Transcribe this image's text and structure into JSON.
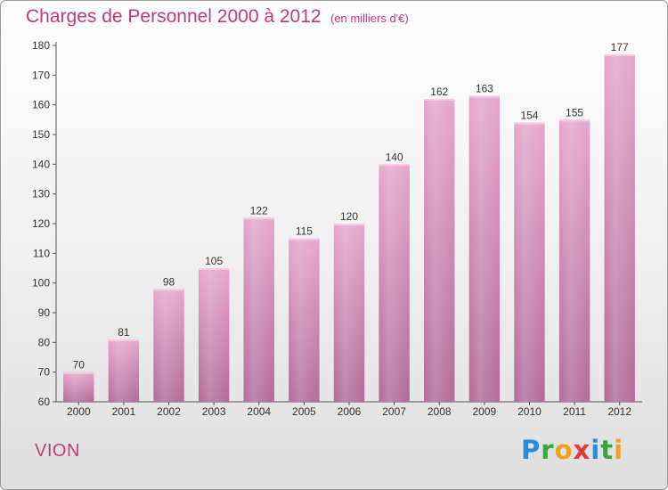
{
  "chart_data": {
    "type": "bar",
    "title": "Charges de Personnel 2000 à 2012",
    "subtitle": "(en milliers d'€)",
    "categories": [
      "2000",
      "2001",
      "2002",
      "2003",
      "2004",
      "2005",
      "2006",
      "2007",
      "2008",
      "2009",
      "2010",
      "2011",
      "2012"
    ],
    "values": [
      70,
      81,
      98,
      105,
      122,
      115,
      120,
      140,
      162,
      163,
      154,
      155,
      177
    ],
    "ylim": [
      60,
      180
    ],
    "yticks": [
      60,
      70,
      80,
      90,
      100,
      110,
      120,
      130,
      140,
      150,
      160,
      170,
      180
    ],
    "grid": false,
    "bar_color": "#d688b4"
  },
  "footer": {
    "town": "VION",
    "logo_letters": [
      {
        "ch": "P",
        "color": "#2a8ad8"
      },
      {
        "ch": "r",
        "color": "#3aa63a"
      },
      {
        "ch": "o",
        "color": "#f0a020"
      },
      {
        "ch": "x",
        "color": "#e03a3a"
      },
      {
        "ch": "i",
        "color": "#2a8ad8"
      },
      {
        "ch": "t",
        "color": "#3aa63a"
      },
      {
        "ch": "i",
        "color": "#f0a020"
      }
    ]
  }
}
